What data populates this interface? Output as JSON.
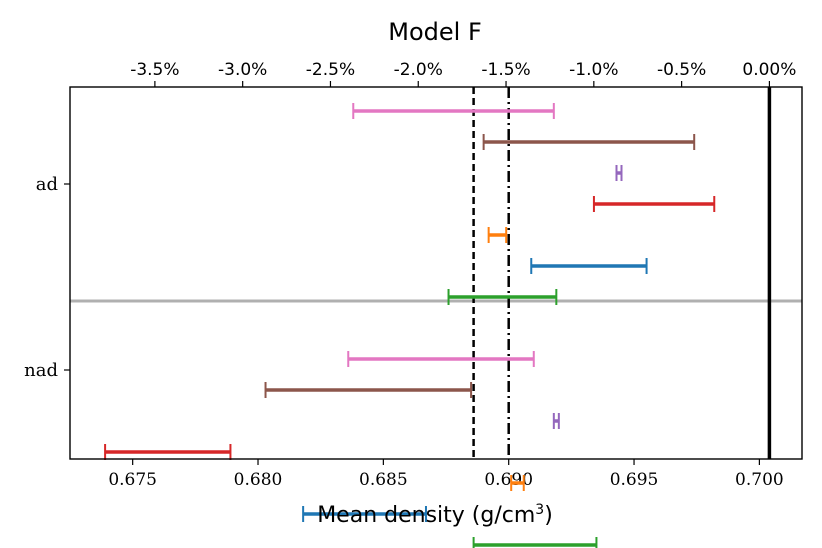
{
  "chart_data": {
    "type": "errorbar-interval",
    "title": "Model F",
    "xlabel": "Mean density (g/cm",
    "xlabel_sup": "3",
    "xlabel_suffix": ")",
    "xlim": [
      0.6725,
      0.7017
    ],
    "bottom_ticks": [
      {
        "value": 0.675,
        "label": "0.675"
      },
      {
        "value": 0.68,
        "label": "0.680"
      },
      {
        "value": 0.685,
        "label": "0.685"
      },
      {
        "value": 0.69,
        "label": "0.690"
      },
      {
        "value": 0.695,
        "label": "0.695"
      },
      {
        "value": 0.7,
        "label": "0.700"
      }
    ],
    "top_ticks": [
      {
        "percent": -3.5,
        "label": "-3.5%"
      },
      {
        "percent": -3.0,
        "label": "-3.0%"
      },
      {
        "percent": -2.5,
        "label": "-2.5%"
      },
      {
        "percent": -2.0,
        "label": "-2.0%"
      },
      {
        "percent": -1.5,
        "label": "-1.5%"
      },
      {
        "percent": -1.0,
        "label": "-1.0%"
      },
      {
        "percent": -0.5,
        "label": "-0.5%"
      },
      {
        "percent": 0.0,
        "label": "0.00%"
      }
    ],
    "reference_value": 0.7004,
    "reference_lines": [
      {
        "name": "reference-solid-line",
        "x": 0.7004,
        "style": "solid"
      },
      {
        "name": "dashed-line",
        "x": 0.6886,
        "style": "dashed"
      },
      {
        "name": "dashdot-line",
        "x": 0.69,
        "style": "dashdot"
      }
    ],
    "y_categories": [
      {
        "label": "ad",
        "pos": 3.5
      },
      {
        "label": "nad",
        "pos": 0.5
      }
    ],
    "ylim": [
      -1.0,
      5.0
    ],
    "separator_y": 2.0,
    "intervals": [
      {
        "group": "ad",
        "color": "#e377c2",
        "y": 5.0,
        "low": 0.6838,
        "high": 0.6918
      },
      {
        "group": "ad",
        "color": "#8c564b",
        "y": 4.5,
        "low": 0.689,
        "high": 0.6974
      },
      {
        "group": "ad",
        "color": "#9467bd",
        "y": 4.0,
        "low": 0.6943,
        "high": 0.6945
      },
      {
        "group": "ad",
        "color": "#d62728",
        "y": 3.5,
        "low": 0.6934,
        "high": 0.6982
      },
      {
        "group": "ad",
        "color": "#ff7f0e",
        "y": 3.0,
        "low": 0.6892,
        "high": 0.6899
      },
      {
        "group": "ad",
        "color": "#1f77b4",
        "y": 2.5,
        "low": 0.6909,
        "high": 0.6955
      },
      {
        "group": "ad",
        "color": "#2ca02c",
        "y": 2.0,
        "low": 0.6876,
        "high": 0.6919
      },
      {
        "group": "nad",
        "color": "#e377c2",
        "y": 1.0,
        "low": 0.6836,
        "high": 0.691
      },
      {
        "group": "nad",
        "color": "#8c564b",
        "y": 0.5,
        "low": 0.6803,
        "high": 0.6885
      },
      {
        "group": "nad",
        "color": "#9467bd",
        "y": 0.0,
        "low": 0.6918,
        "high": 0.692
      },
      {
        "group": "nad",
        "color": "#d62728",
        "y": -0.5,
        "low": 0.6739,
        "high": 0.6789
      },
      {
        "group": "nad",
        "color": "#ff7f0e",
        "y": -1.0,
        "low": 0.6901,
        "high": 0.6906
      },
      {
        "group": "nad",
        "color": "#1f77b4",
        "y": -1.5,
        "low": 0.6818,
        "high": 0.6867
      },
      {
        "group": "nad",
        "color": "#2ca02c",
        "y": -2.0,
        "low": 0.6886,
        "high": 0.6935
      }
    ]
  }
}
